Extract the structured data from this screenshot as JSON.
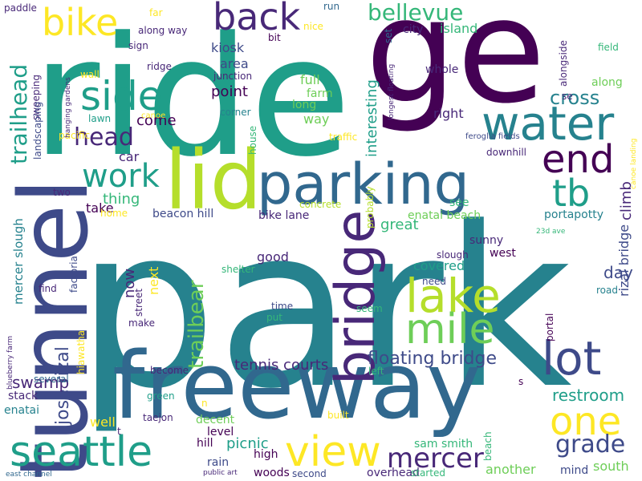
{
  "palette": {
    "purple": "#440154",
    "indigo": "#482878",
    "blue": "#3e4a89",
    "steel": "#31688e",
    "teal": "#26828e",
    "green": "#1f9e89",
    "mint": "#35b779",
    "lime": "#6ece58",
    "chartreuse": "#b5de2b",
    "yellow": "#fde725"
  },
  "words": [
    {
      "text": "park",
      "color": "teal"
    },
    {
      "text": "ride",
      "color": "green"
    },
    {
      "text": "ge",
      "color": "purple"
    },
    {
      "text": "freeway",
      "color": "steel"
    },
    {
      "text": "tunnel",
      "color": "blue"
    },
    {
      "text": "lid",
      "color": "chartreuse"
    },
    {
      "text": "parking",
      "color": "steel"
    },
    {
      "text": "water",
      "color": "teal"
    },
    {
      "text": "lake",
      "color": "chartreuse"
    },
    {
      "text": "bridge",
      "color": "indigo"
    },
    {
      "text": "lot",
      "color": "blue"
    },
    {
      "text": "seattle",
      "color": "green"
    },
    {
      "text": "view",
      "color": "yellow"
    },
    {
      "text": "mile",
      "color": "lime"
    },
    {
      "text": "one",
      "color": "yellow"
    },
    {
      "text": "back",
      "color": "indigo"
    },
    {
      "text": "side",
      "color": "green"
    },
    {
      "text": "bike",
      "color": "yellow"
    },
    {
      "text": "end",
      "color": "purple"
    },
    {
      "text": "tb",
      "color": "green"
    },
    {
      "text": "work",
      "color": "green"
    },
    {
      "text": "head",
      "color": "indigo"
    },
    {
      "text": "trailhead",
      "color": "green"
    },
    {
      "text": "mercer",
      "color": "indigo"
    },
    {
      "text": "grade",
      "color": "blue"
    },
    {
      "text": "bellevue",
      "color": "mint"
    },
    {
      "text": "trailbear",
      "color": "lime"
    },
    {
      "text": "floating bridge",
      "color": "blue"
    },
    {
      "text": "jose rizal",
      "color": "blue"
    },
    {
      "text": "tennis courts",
      "color": "indigo"
    },
    {
      "text": "cross",
      "color": "teal"
    },
    {
      "text": "interesting",
      "color": "green"
    },
    {
      "text": "climb",
      "color": "indigo"
    },
    {
      "text": "rizal bridge",
      "color": "blue"
    },
    {
      "text": "mercer slough",
      "color": "teal"
    },
    {
      "text": "restroom",
      "color": "green"
    },
    {
      "text": "day",
      "color": "blue"
    },
    {
      "text": "covered",
      "color": "green"
    },
    {
      "text": "now",
      "color": "indigo"
    },
    {
      "text": "great",
      "color": "mint"
    },
    {
      "text": "thing",
      "color": "mint"
    },
    {
      "text": "kiosk",
      "color": "blue"
    },
    {
      "text": "point",
      "color": "purple"
    },
    {
      "text": "area",
      "color": "blue"
    },
    {
      "text": "come",
      "color": "purple"
    },
    {
      "text": "car",
      "color": "indigo"
    },
    {
      "text": "take",
      "color": "purple"
    },
    {
      "text": "beacon hill",
      "color": "blue"
    },
    {
      "text": "bike lane",
      "color": "indigo"
    },
    {
      "text": "swamp",
      "color": "indigo"
    },
    {
      "text": "picnic",
      "color": "green"
    },
    {
      "text": "good",
      "color": "indigo"
    },
    {
      "text": "sunny",
      "color": "indigo"
    },
    {
      "text": "west",
      "color": "purple"
    },
    {
      "text": "whole",
      "color": "indigo"
    },
    {
      "text": "right",
      "color": "indigo"
    },
    {
      "text": "city",
      "color": "indigo"
    },
    {
      "text": "island",
      "color": "mint"
    },
    {
      "text": "full",
      "color": "lime"
    },
    {
      "text": "farm",
      "color": "lime"
    },
    {
      "text": "way",
      "color": "lime"
    },
    {
      "text": "long",
      "color": "lime"
    },
    {
      "text": "next",
      "color": "yellow"
    },
    {
      "text": "well",
      "color": "yellow"
    },
    {
      "text": "stack",
      "color": "indigo"
    },
    {
      "text": "enatai",
      "color": "teal"
    },
    {
      "text": "enatai beach",
      "color": "lime"
    },
    {
      "text": "another",
      "color": "lime"
    },
    {
      "text": "south",
      "color": "lime"
    },
    {
      "text": "along",
      "color": "lime"
    },
    {
      "text": "portapotty",
      "color": "teal"
    },
    {
      "text": "sam smith",
      "color": "mint"
    },
    {
      "text": "overhead",
      "color": "indigo"
    },
    {
      "text": "started",
      "color": "mint"
    },
    {
      "text": "mind",
      "color": "blue"
    },
    {
      "text": "woods",
      "color": "purple"
    },
    {
      "text": "second",
      "color": "blue"
    },
    {
      "text": "high",
      "color": "purple"
    },
    {
      "text": "rain",
      "color": "blue"
    },
    {
      "text": "hill",
      "color": "purple"
    },
    {
      "text": "level",
      "color": "purple"
    },
    {
      "text": "decent",
      "color": "lime"
    },
    {
      "text": "taejon",
      "color": "indigo"
    },
    {
      "text": "become",
      "color": "indigo"
    },
    {
      "text": "green",
      "color": "green"
    },
    {
      "text": "several",
      "color": "steel"
    },
    {
      "text": "shelter",
      "color": "mint"
    },
    {
      "text": "time",
      "color": "blue"
    },
    {
      "text": "put",
      "color": "mint"
    },
    {
      "text": "make",
      "color": "indigo"
    },
    {
      "text": "seem",
      "color": "mint"
    },
    {
      "text": "need",
      "color": "blue"
    },
    {
      "text": "slough",
      "color": "indigo"
    },
    {
      "text": "see",
      "color": "mint"
    },
    {
      "text": "built",
      "color": "yellow"
    },
    {
      "text": "left",
      "color": "mint"
    },
    {
      "text": "concrete",
      "color": "chartreuse"
    },
    {
      "text": "probably",
      "color": "chartreuse"
    },
    {
      "text": "traffic",
      "color": "yellow"
    },
    {
      "text": "downhill",
      "color": "indigo"
    },
    {
      "text": "feroglia fields",
      "color": "blue"
    },
    {
      "text": "house",
      "color": "mint"
    },
    {
      "text": "corner",
      "color": "teal"
    },
    {
      "text": "junction",
      "color": "indigo"
    },
    {
      "text": "ridge",
      "color": "indigo"
    },
    {
      "text": "along way",
      "color": "indigo"
    },
    {
      "text": "sign",
      "color": "indigo"
    },
    {
      "text": "far",
      "color": "yellow"
    },
    {
      "text": "bit",
      "color": "purple"
    },
    {
      "text": "nice",
      "color": "yellow"
    },
    {
      "text": "run",
      "color": "steel"
    },
    {
      "text": "set",
      "color": "steel"
    },
    {
      "text": "paddle",
      "color": "indigo"
    },
    {
      "text": "sweeping",
      "color": "indigo"
    },
    {
      "text": "landscaping",
      "color": "blue"
    },
    {
      "text": "wall",
      "color": "yellow"
    },
    {
      "text": "lawn",
      "color": "green"
    },
    {
      "text": "canoe",
      "color": "yellow"
    },
    {
      "text": "pacific",
      "color": "yellow"
    },
    {
      "text": "two",
      "color": "indigo"
    },
    {
      "text": "home",
      "color": "yellow"
    },
    {
      "text": "factoria",
      "color": "blue"
    },
    {
      "text": "find",
      "color": "indigo"
    },
    {
      "text": "street",
      "color": "indigo"
    },
    {
      "text": "hiawatha",
      "color": "yellow"
    },
    {
      "text": "alongside",
      "color": "indigo"
    },
    {
      "text": "se",
      "color": "indigo"
    },
    {
      "text": "field",
      "color": "mint"
    },
    {
      "text": "23d ave",
      "color": "mint"
    },
    {
      "text": "canoe landing",
      "color": "yellow"
    },
    {
      "text": "road",
      "color": "teal"
    },
    {
      "text": "portal",
      "color": "purple"
    },
    {
      "text": "s",
      "color": "purple"
    },
    {
      "text": "t",
      "color": "indigo"
    },
    {
      "text": "n",
      "color": "yellow"
    },
    {
      "text": "beach",
      "color": "mint"
    },
    {
      "text": "hanging gardens",
      "color": "indigo"
    },
    {
      "text": "longest floating",
      "color": "indigo"
    },
    {
      "text": "blueberry farm",
      "color": "indigo"
    },
    {
      "text": "east channel",
      "color": "steel"
    },
    {
      "text": "public art",
      "color": "indigo"
    }
  ]
}
